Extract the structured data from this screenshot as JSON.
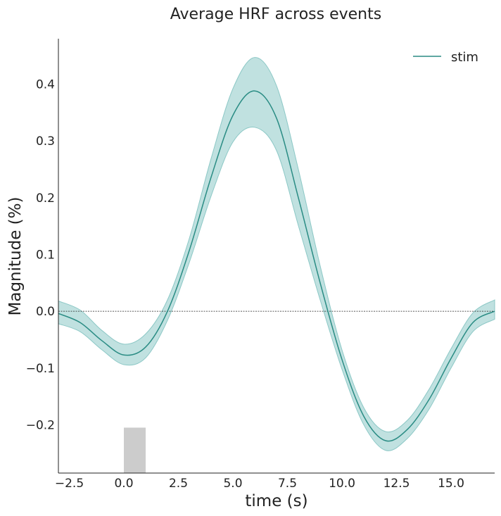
{
  "chart_data": {
    "type": "line",
    "title": "Average HRF across events",
    "xlabel": "time (s)",
    "ylabel": "Magnitude (%)",
    "xlim": [
      -3.0,
      17.0
    ],
    "ylim": [
      -0.285,
      0.48
    ],
    "xticks": [
      -2.5,
      0.0,
      2.5,
      5.0,
      7.5,
      10.0,
      12.5,
      15.0
    ],
    "xtick_labels": [
      "−2.5",
      "0.0",
      "2.5",
      "5.0",
      "7.5",
      "10.0",
      "12.5",
      "15.0"
    ],
    "yticks": [
      -0.2,
      -0.1,
      0.0,
      0.1,
      0.2,
      0.3,
      0.4
    ],
    "ytick_labels": [
      "−0.2",
      "−0.1",
      "0.0",
      "0.1",
      "0.2",
      "0.3",
      "0.4"
    ],
    "grid": false,
    "legend_position": "top-right",
    "zero_line": true,
    "stimulus_block": {
      "x_start": 0.0,
      "x_end": 1.0,
      "y_bottom": -0.285,
      "y_top": -0.205,
      "color": "#cccccc"
    },
    "series": [
      {
        "name": "stim",
        "color": "#2a8c84",
        "band_color": "#8cc8c6",
        "x": [
          -3.0,
          -2.0,
          -1.0,
          0.0,
          1.0,
          2.0,
          3.0,
          4.0,
          5.0,
          6.0,
          7.0,
          8.0,
          9.0,
          10.0,
          11.0,
          12.0,
          13.0,
          14.0,
          15.0,
          16.0,
          17.0
        ],
        "y": [
          -0.004,
          -0.02,
          -0.052,
          -0.077,
          -0.063,
          0.0,
          0.107,
          0.236,
          0.345,
          0.388,
          0.34,
          0.2,
          0.05,
          -0.085,
          -0.185,
          -0.228,
          -0.208,
          -0.155,
          -0.083,
          -0.02,
          0.0
        ],
        "lower": [
          -0.022,
          -0.036,
          -0.068,
          -0.094,
          -0.082,
          -0.016,
          0.086,
          0.203,
          0.298,
          0.324,
          0.283,
          0.151,
          0.02,
          -0.102,
          -0.2,
          -0.245,
          -0.224,
          -0.172,
          -0.1,
          -0.036,
          -0.014
        ],
        "upper": [
          0.018,
          0.002,
          -0.034,
          -0.058,
          -0.04,
          0.02,
          0.128,
          0.269,
          0.392,
          0.447,
          0.397,
          0.25,
          0.08,
          -0.068,
          -0.17,
          -0.212,
          -0.192,
          -0.137,
          -0.066,
          -0.003,
          0.02
        ]
      }
    ]
  }
}
